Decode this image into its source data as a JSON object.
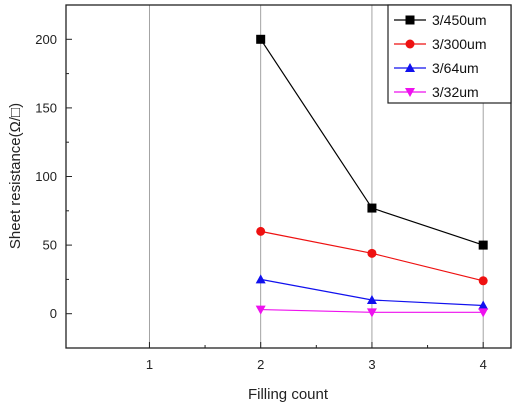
{
  "chart_data": {
    "type": "line",
    "xlabel": "Filling count",
    "ylabel": "Sheet resistance(Ω/□)",
    "xlim": [
      0.25,
      4.25
    ],
    "ylim": [
      -25,
      225
    ],
    "x_ticks": [
      "1",
      "2",
      "3",
      "4"
    ],
    "y_ticks": [
      "0",
      "50",
      "100",
      "150",
      "200"
    ],
    "grid": "vertical",
    "legend_position": "top-right",
    "series": [
      {
        "name": "3/450um",
        "color": "#000000",
        "marker": "square",
        "x": [
          2,
          3,
          4
        ],
        "y": [
          200,
          77,
          50
        ]
      },
      {
        "name": "3/300um",
        "color": "#ee1111",
        "marker": "circle",
        "x": [
          2,
          3,
          4
        ],
        "y": [
          60,
          44,
          24
        ]
      },
      {
        "name": "3/64um",
        "color": "#1111ee",
        "marker": "triangle-up",
        "x": [
          2,
          3,
          4
        ],
        "y": [
          25,
          10,
          6
        ]
      },
      {
        "name": "3/32um",
        "color": "#ee11ee",
        "marker": "triangle-down",
        "x": [
          2,
          3,
          4
        ],
        "y": [
          3,
          1,
          1
        ]
      }
    ]
  }
}
